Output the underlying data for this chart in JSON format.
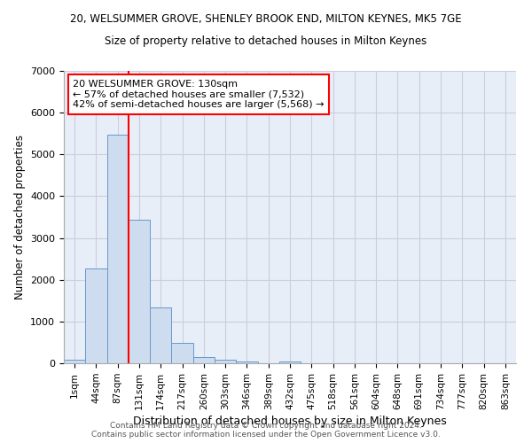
{
  "title_line1": "20, WELSUMMER GROVE, SHENLEY BROOK END, MILTON KEYNES, MK5 7GE",
  "title_line2": "Size of property relative to detached houses in Milton Keynes",
  "xlabel": "Distribution of detached houses by size in Milton Keynes",
  "ylabel": "Number of detached properties",
  "bar_labels": [
    "1sqm",
    "44sqm",
    "87sqm",
    "131sqm",
    "174sqm",
    "217sqm",
    "260sqm",
    "303sqm",
    "346sqm",
    "389sqm",
    "432sqm",
    "475sqm",
    "518sqm",
    "561sqm",
    "604sqm",
    "648sqm",
    "691sqm",
    "734sqm",
    "777sqm",
    "820sqm",
    "863sqm"
  ],
  "bar_values": [
    75,
    2280,
    5480,
    3440,
    1340,
    480,
    150,
    75,
    50,
    0,
    50,
    0,
    0,
    0,
    0,
    0,
    0,
    0,
    0,
    0,
    0
  ],
  "bar_color": "#cddcee",
  "bar_edge_color": "#6699cc",
  "grid_color": "#ccccdd",
  "background_color": "#e8eef8",
  "vline_color": "red",
  "vline_pos": 2.5,
  "annotation_text": "20 WELSUMMER GROVE: 130sqm\n← 57% of detached houses are smaller (7,532)\n42% of semi-detached houses are larger (5,568) →",
  "annotation_box_color": "white",
  "annotation_box_edge": "red",
  "ylim": [
    0,
    7000
  ],
  "yticks": [
    0,
    1000,
    2000,
    3000,
    4000,
    5000,
    6000,
    7000
  ],
  "footer_line1": "Contains HM Land Registry data © Crown copyright and database right 2024.",
  "footer_line2": "Contains public sector information licensed under the Open Government Licence v3.0."
}
